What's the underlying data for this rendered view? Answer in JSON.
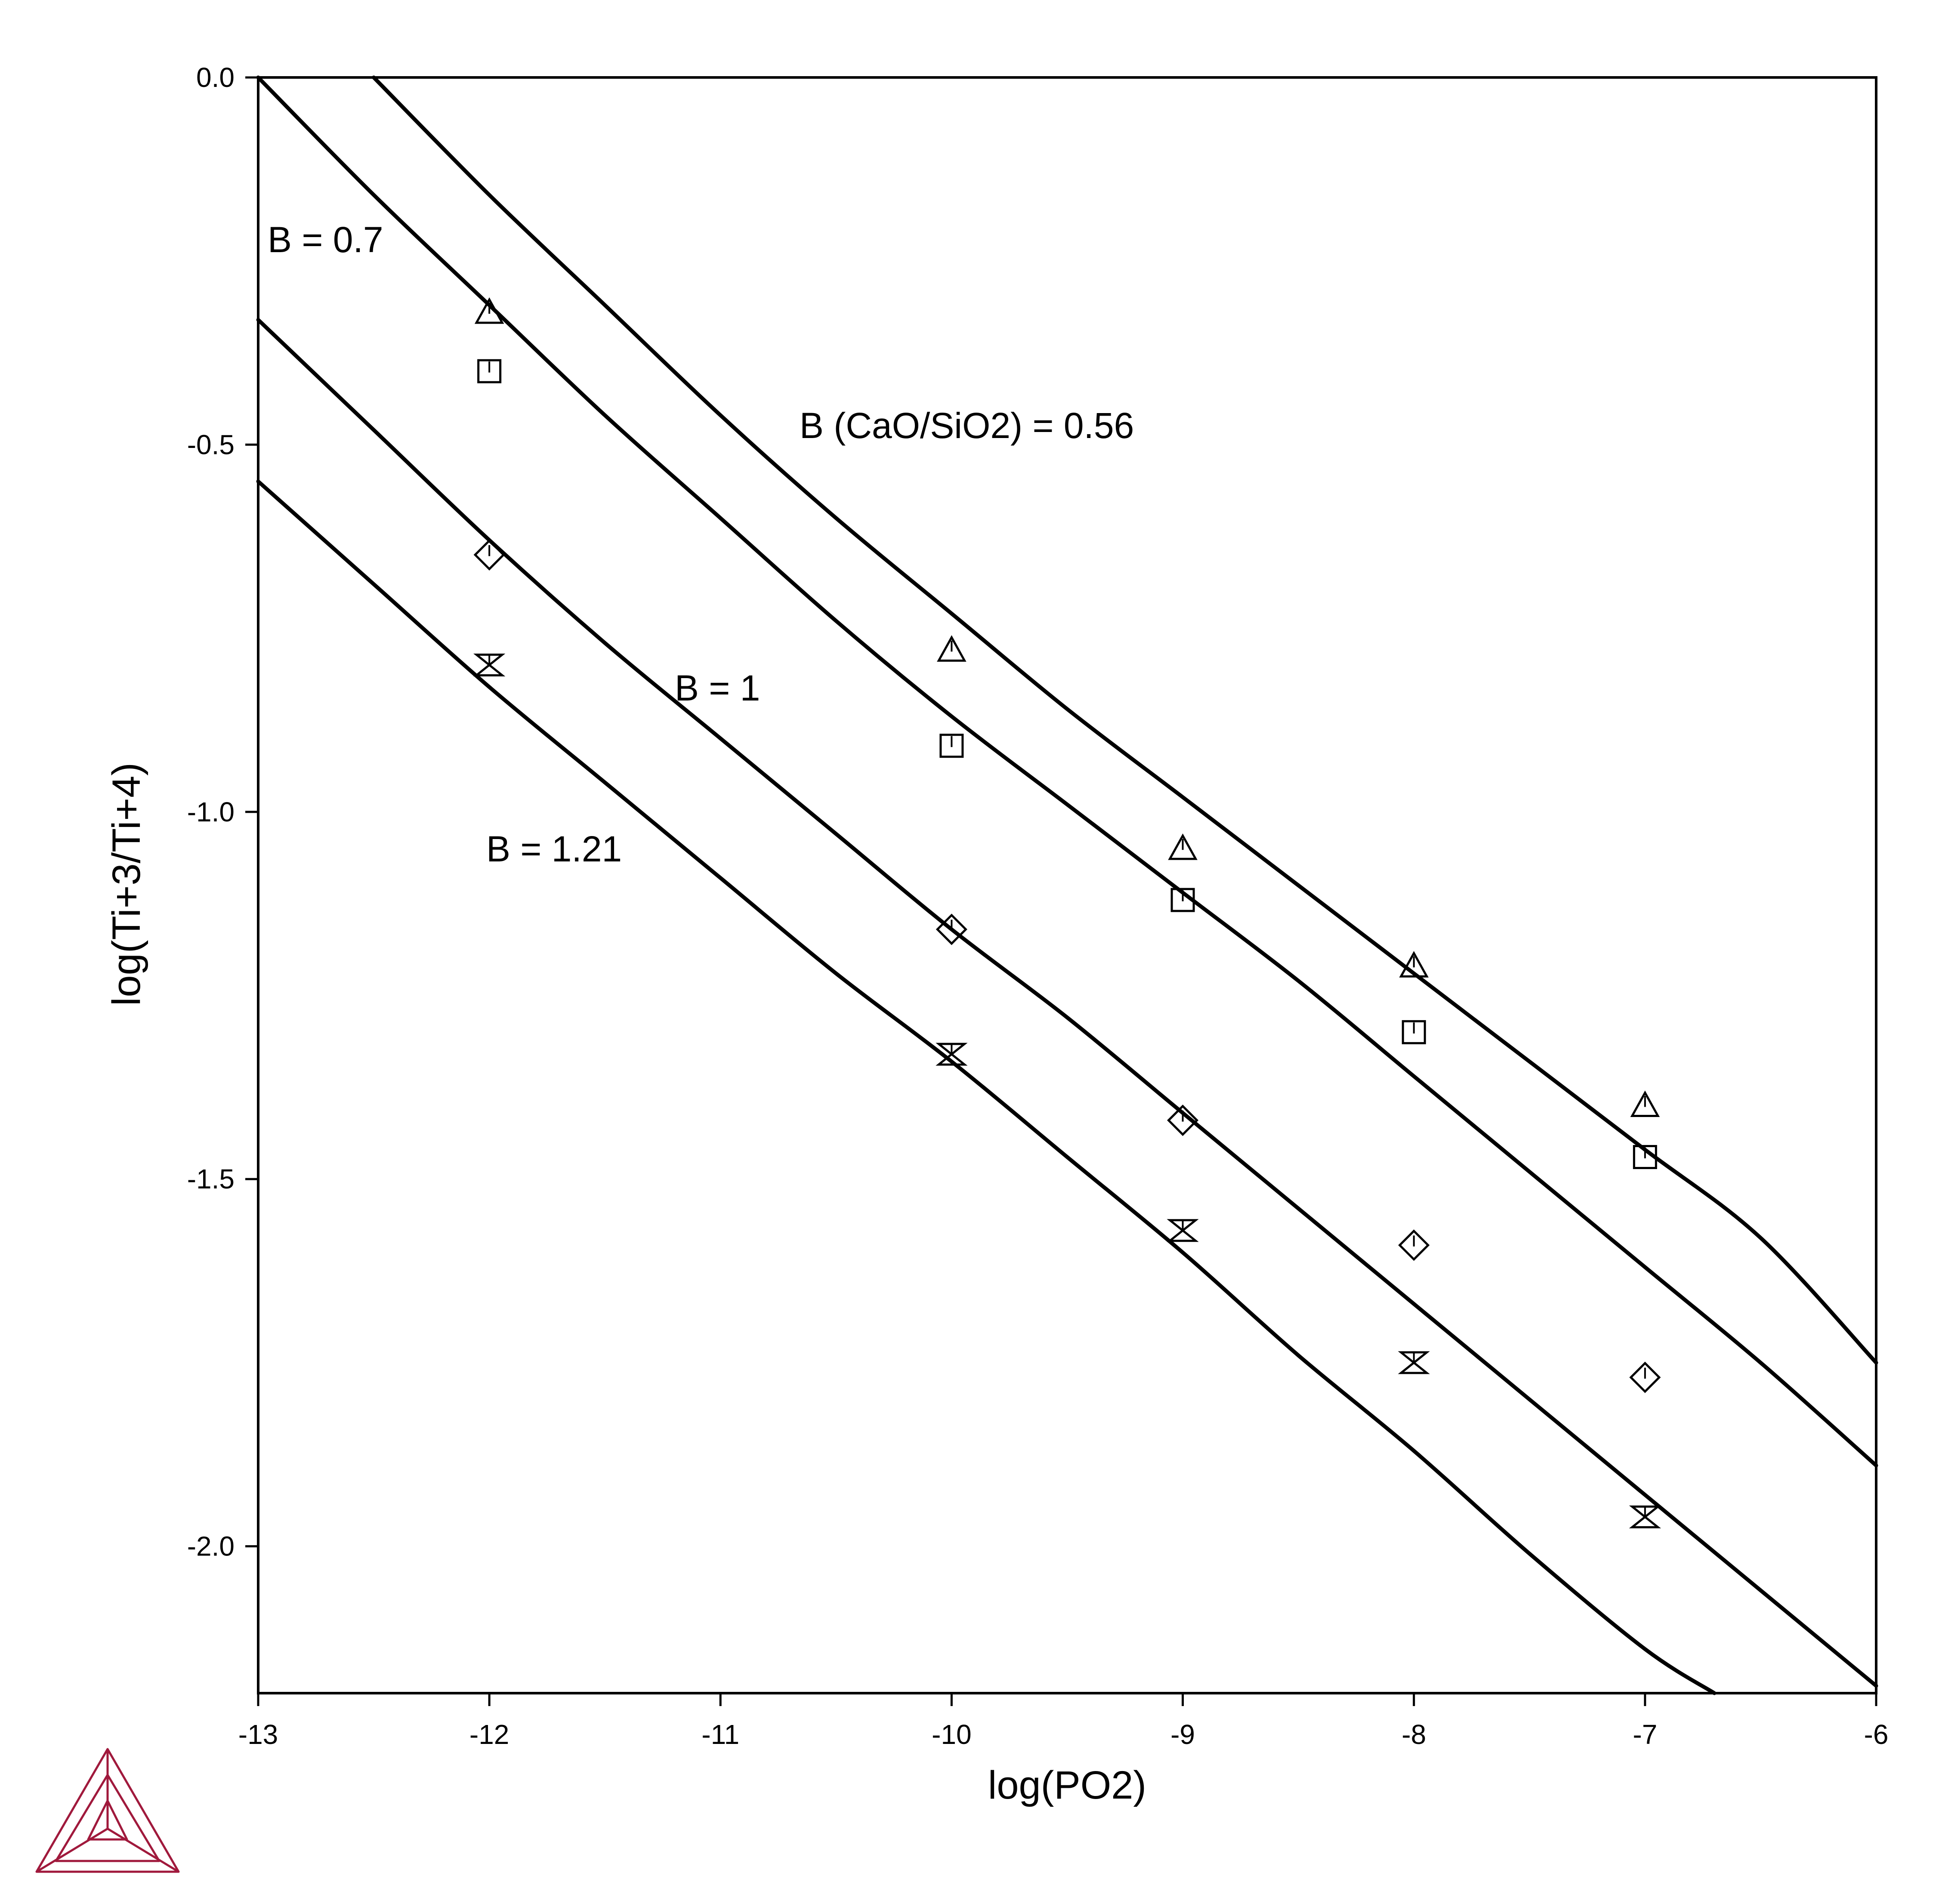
{
  "chart_data": {
    "type": "line",
    "title": "",
    "xlabel": "log(PO2)",
    "ylabel": "log(Ti+3/Ti+4)",
    "xlim": [
      -13,
      -6
    ],
    "ylim": [
      -2.2,
      0.0
    ],
    "xticks": [
      -13,
      -12,
      -11,
      -10,
      -9,
      -8,
      -7,
      -6
    ],
    "xtick_labels": [
      "-13",
      "-12",
      "-11",
      "-10",
      "-9",
      "-8",
      "-7",
      "-6"
    ],
    "yticks": [
      0.0,
      -0.5,
      -1.0,
      -1.5,
      -2.0
    ],
    "ytick_labels": [
      "0.0",
      "-0.5",
      "-1.0",
      "-1.5",
      "-2.0"
    ],
    "grid": false,
    "curves": [
      {
        "label": "B (CaO/SiO2) = 0.56",
        "x": [
          -12.5,
          -12.0,
          -11.5,
          -11.0,
          -10.5,
          -10.0,
          -9.5,
          -9.0,
          -8.5,
          -8.0,
          -7.5,
          -7.0,
          -6.5,
          -6.0
        ],
        "y": [
          0.0,
          -0.16,
          -0.31,
          -0.46,
          -0.6,
          -0.73,
          -0.86,
          -0.98,
          -1.1,
          -1.22,
          -1.34,
          -1.46,
          -1.58,
          -1.75
        ]
      },
      {
        "label": "B = 0.7",
        "x": [
          -13.0,
          -12.5,
          -12.0,
          -11.5,
          -11.0,
          -10.5,
          -10.0,
          -9.5,
          -9.0,
          -8.5,
          -8.0,
          -7.5,
          -7.0,
          -6.5,
          -6.0
        ],
        "y": [
          0.0,
          -0.16,
          -0.31,
          -0.46,
          -0.6,
          -0.74,
          -0.87,
          -0.99,
          -1.11,
          -1.23,
          -1.36,
          -1.49,
          -1.62,
          -1.75,
          -1.89
        ]
      },
      {
        "label": "B = 1",
        "x": [
          -13.0,
          -12.5,
          -12.0,
          -11.5,
          -11.0,
          -10.5,
          -10.0,
          -9.5,
          -9.0,
          -8.5,
          -8.0,
          -7.5,
          -7.0,
          -6.5,
          -6.0
        ],
        "y": [
          -0.33,
          -0.48,
          -0.63,
          -0.77,
          -0.9,
          -1.03,
          -1.16,
          -1.28,
          -1.41,
          -1.54,
          -1.67,
          -1.8,
          -1.93,
          -2.06,
          -2.19
        ]
      },
      {
        "label": "B = 1.21",
        "x": [
          -13.0,
          -12.5,
          -12.0,
          -11.5,
          -11.0,
          -10.5,
          -10.0,
          -9.5,
          -9.0,
          -8.5,
          -8.0,
          -7.5,
          -7.0,
          -6.7
        ],
        "y": [
          -0.55,
          -0.69,
          -0.83,
          -0.96,
          -1.09,
          -1.22,
          -1.34,
          -1.47,
          -1.6,
          -1.74,
          -1.87,
          -2.01,
          -2.14,
          -2.2
        ]
      }
    ],
    "series": [
      {
        "marker": "triangle",
        "x": [
          -12,
          -10,
          -9,
          -8,
          -7
        ],
        "y": [
          -0.32,
          -0.78,
          -1.05,
          -1.21,
          -1.4
        ]
      },
      {
        "marker": "square",
        "x": [
          -12,
          -10,
          -9,
          -8,
          -7
        ],
        "y": [
          -0.4,
          -0.91,
          -1.12,
          -1.3,
          -1.47
        ]
      },
      {
        "marker": "diamond",
        "x": [
          -12,
          -10,
          -9,
          -8,
          -7
        ],
        "y": [
          -0.65,
          -1.16,
          -1.42,
          -1.59,
          -1.77
        ]
      },
      {
        "marker": "hourglass",
        "x": [
          -12,
          -10,
          -9,
          -8,
          -7
        ],
        "y": [
          -0.8,
          -1.33,
          -1.57,
          -1.75,
          -1.96
        ]
      }
    ]
  },
  "colors": {
    "axes": "#000000",
    "curves": "#000000",
    "markers": "#000000",
    "logo": "#a0193c"
  },
  "logo": {
    "icon": "thermo-calc-triangle-logo"
  }
}
